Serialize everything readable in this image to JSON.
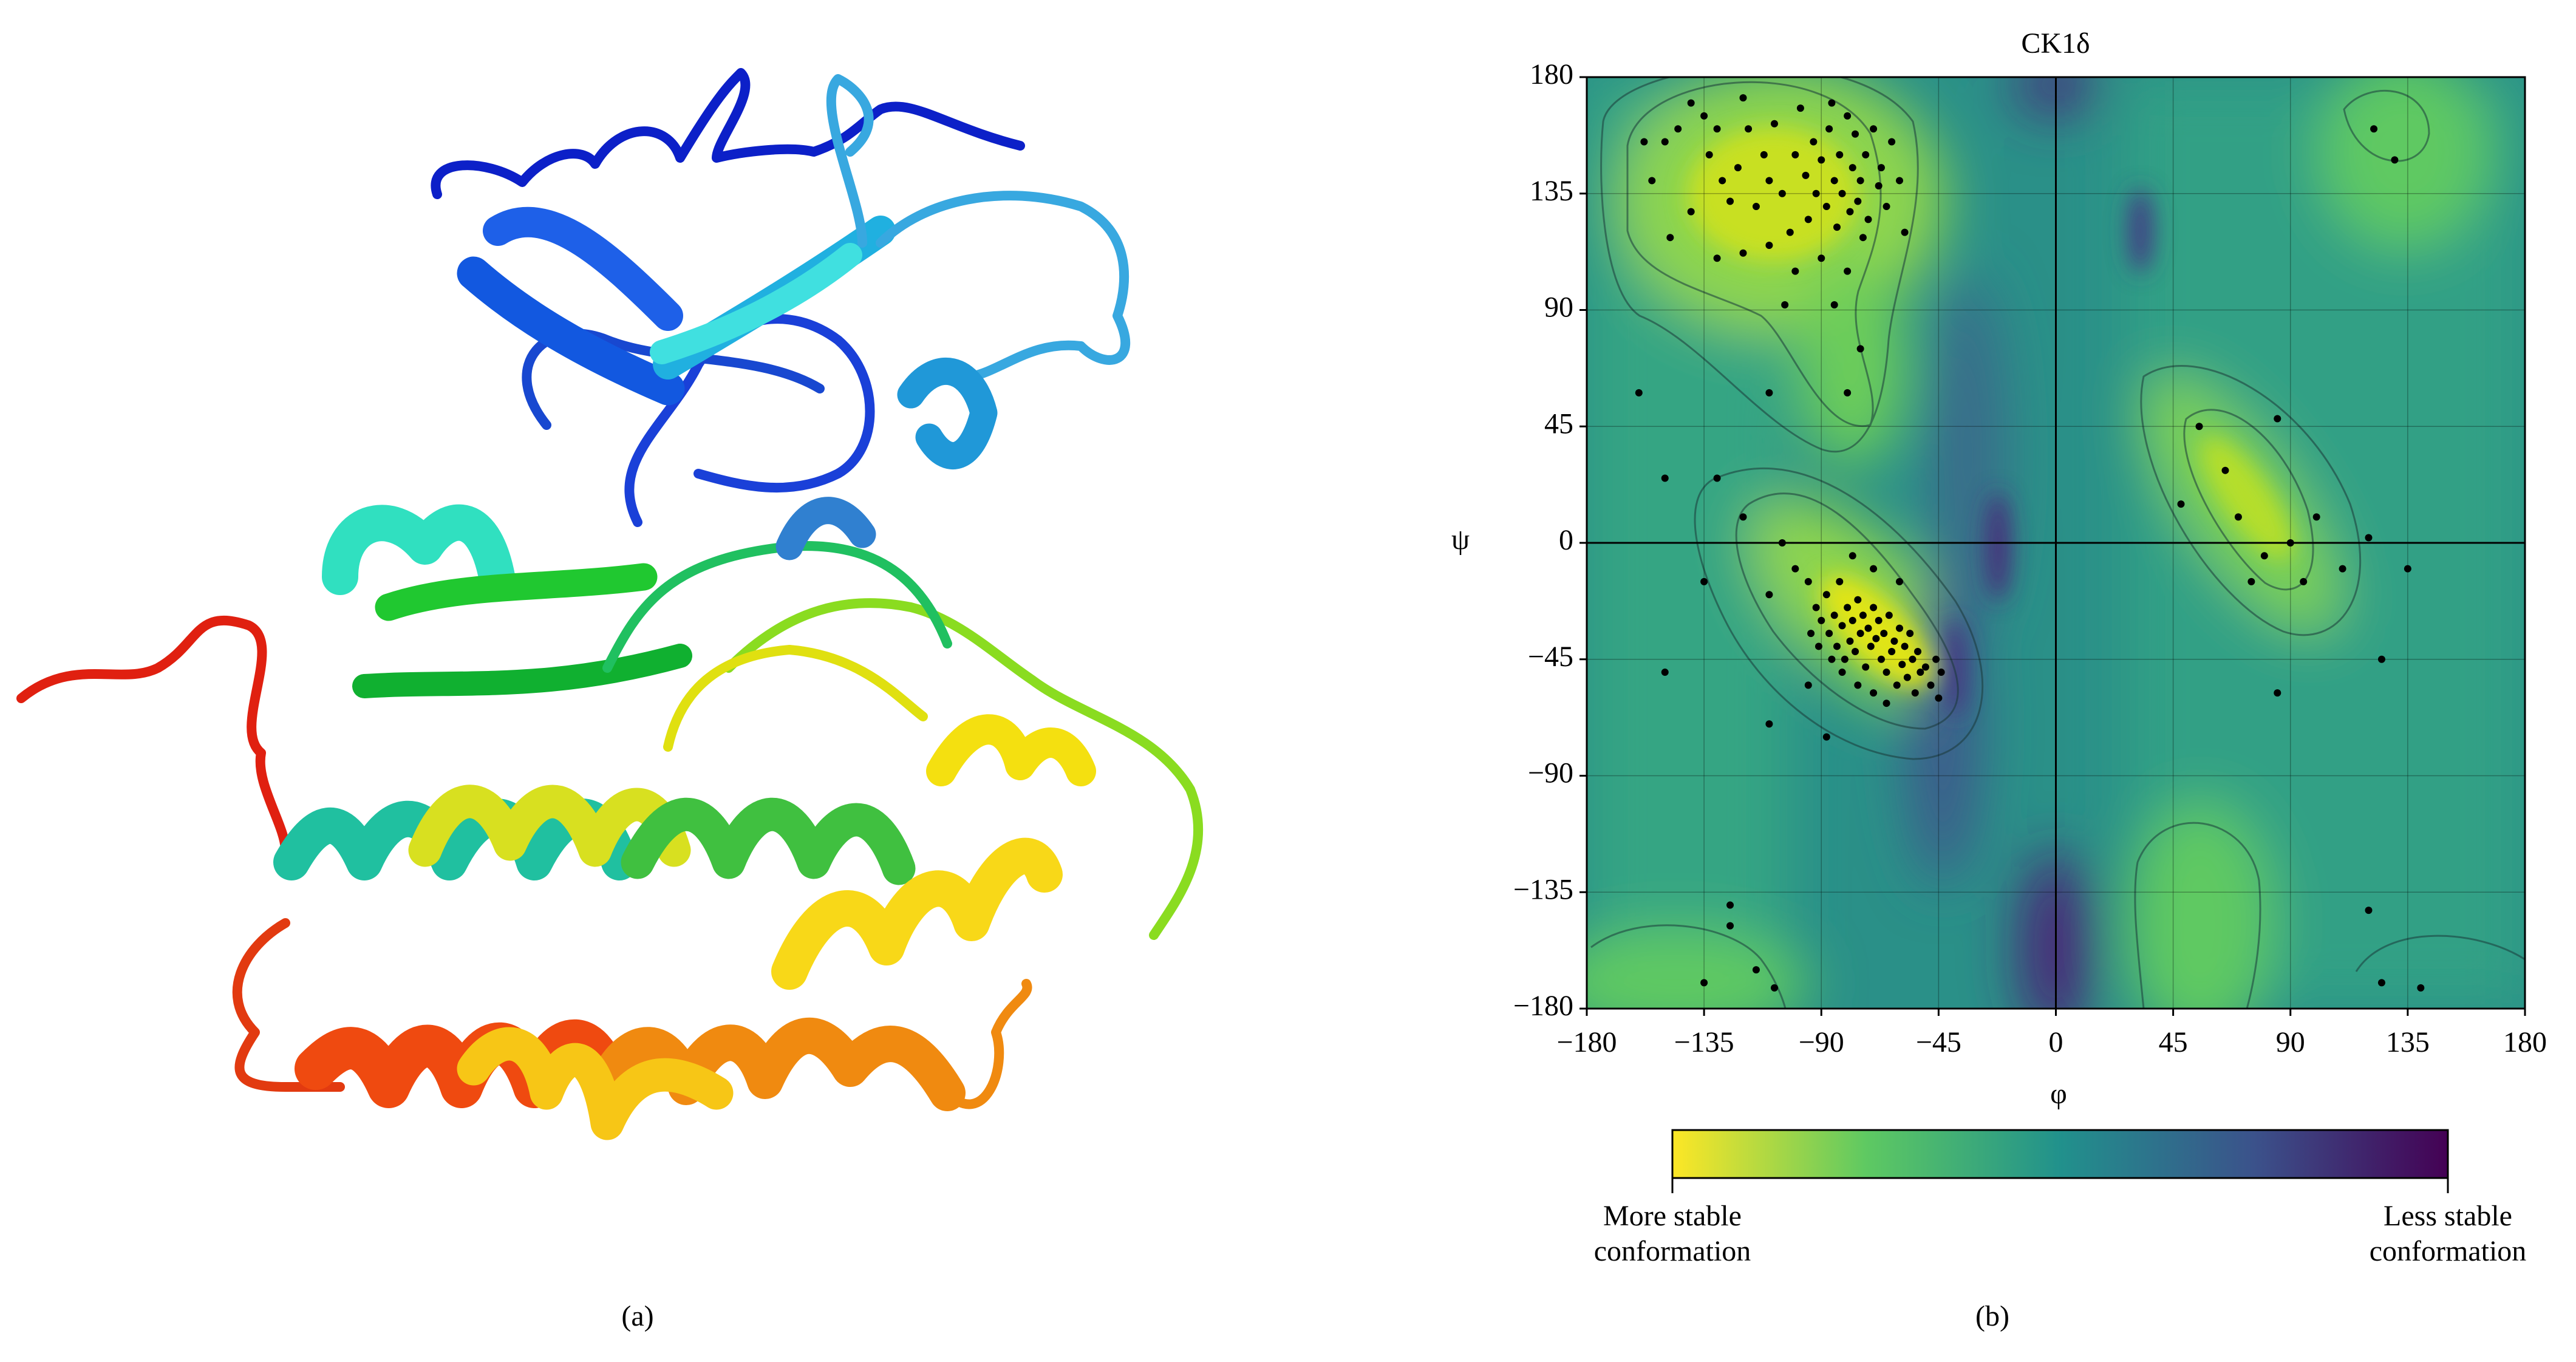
{
  "panel_labels": [
    "(a)",
    "(b)"
  ],
  "chart_data": {
    "type": "scatter",
    "title": "CK1δ",
    "x_label": "φ",
    "y_label": "ψ",
    "color": "#000000",
    "xlim": [
      -180,
      180
    ],
    "ylim": [
      -180,
      180
    ],
    "xticks": [
      {
        "value": -180,
        "label": "−180"
      },
      {
        "value": -135,
        "label": "−135"
      },
      {
        "value": -90,
        "label": "−90"
      },
      {
        "value": -45,
        "label": "−45"
      },
      0,
      45,
      90,
      135,
      180
    ],
    "yticks": [
      {
        "value": -180,
        "label": "−180"
      },
      {
        "value": -135,
        "label": "−135"
      },
      {
        "value": -90,
        "label": "−90"
      },
      {
        "value": -45,
        "label": "−45"
      },
      0,
      45,
      90,
      135,
      180
    ],
    "grid": true,
    "colorbar": {
      "low_label": [
        "More stable",
        "conformation"
      ],
      "high_label": [
        "Less stable",
        "conformation"
      ],
      "colors": [
        "#fde725",
        "#5ec962",
        "#21918c",
        "#3b528b",
        "#440154"
      ]
    },
    "x": [
      -150,
      -145,
      -140,
      -135,
      -133,
      -130,
      -128,
      -125,
      -122,
      -120,
      -118,
      -115,
      -112,
      -110,
      -108,
      -105,
      -102,
      -100,
      -98,
      -96,
      -95,
      -93,
      -92,
      -90,
      -88,
      -87,
      -86,
      -85,
      -84,
      -83,
      -82,
      -80,
      -79,
      -78,
      -77,
      -76,
      -75,
      -74,
      -73,
      -72,
      -70,
      -68,
      -67,
      -65,
      -63,
      -60,
      -58,
      -120,
      -110,
      -100,
      -90,
      -80,
      -140,
      -155,
      -158,
      -85,
      -75,
      -104,
      -130,
      -148,
      -100,
      -95,
      -92,
      -90,
      -88,
      -87,
      -85,
      -84,
      -83,
      -82,
      -81,
      -80,
      -79,
      -78,
      -77,
      -76,
      -75,
      -74,
      -73,
      -72,
      -71,
      -70,
      -69,
      -68,
      -67,
      -66,
      -65,
      -64,
      -63,
      -62,
      -61,
      -60,
      -59,
      -58,
      -57,
      -56,
      -55,
      -54,
      -53,
      -52,
      -50,
      -48,
      -46,
      -45,
      -44,
      -86,
      -91,
      -94,
      -82,
      -76,
      -70,
      -65,
      -60,
      -70,
      -78,
      -105,
      -110,
      -95,
      -88,
      -110,
      -120,
      -130,
      -135,
      -150,
      48,
      55,
      65,
      70,
      75,
      80,
      85,
      90,
      95,
      100,
      85,
      110,
      120,
      125,
      135,
      130,
      122,
      -160,
      -150,
      -110,
      -80,
      -125,
      -125,
      -135,
      -115,
      -108,
      120,
      125,
      140
    ],
    "values": [
      155,
      160,
      170,
      165,
      150,
      160,
      140,
      132,
      145,
      172,
      160,
      130,
      150,
      140,
      162,
      135,
      120,
      150,
      168,
      142,
      125,
      155,
      135,
      148,
      130,
      160,
      170,
      140,
      122,
      150,
      135,
      165,
      128,
      145,
      158,
      132,
      140,
      118,
      150,
      125,
      160,
      138,
      145,
      130,
      155,
      140,
      120,
      112,
      115,
      105,
      110,
      105,
      128,
      140,
      155,
      92,
      75,
      92,
      110,
      118,
      -10,
      -15,
      -25,
      -30,
      -20,
      -35,
      -28,
      -40,
      -15,
      -32,
      -45,
      -25,
      -38,
      -30,
      -42,
      -22,
      -35,
      -28,
      -48,
      -33,
      -40,
      -25,
      -37,
      -30,
      -45,
      -35,
      -50,
      -28,
      -42,
      -38,
      -55,
      -33,
      -47,
      -40,
      -52,
      -35,
      -45,
      -58,
      -42,
      -50,
      -48,
      -55,
      -45,
      -60,
      -50,
      -45,
      -40,
      -35,
      -50,
      -55,
      -58,
      -62,
      -15,
      -10,
      -5,
      0,
      -20,
      -55,
      -75,
      -70,
      10,
      25,
      -15,
      -50,
      15,
      45,
      28,
      10,
      -15,
      -5,
      48,
      0,
      -15,
      10,
      -58,
      -10,
      2,
      -45,
      -10,
      148,
      160,
      58,
      25,
      58,
      58,
      -140,
      -148,
      -170,
      -165,
      -172,
      -142,
      -170,
      -172
    ]
  }
}
